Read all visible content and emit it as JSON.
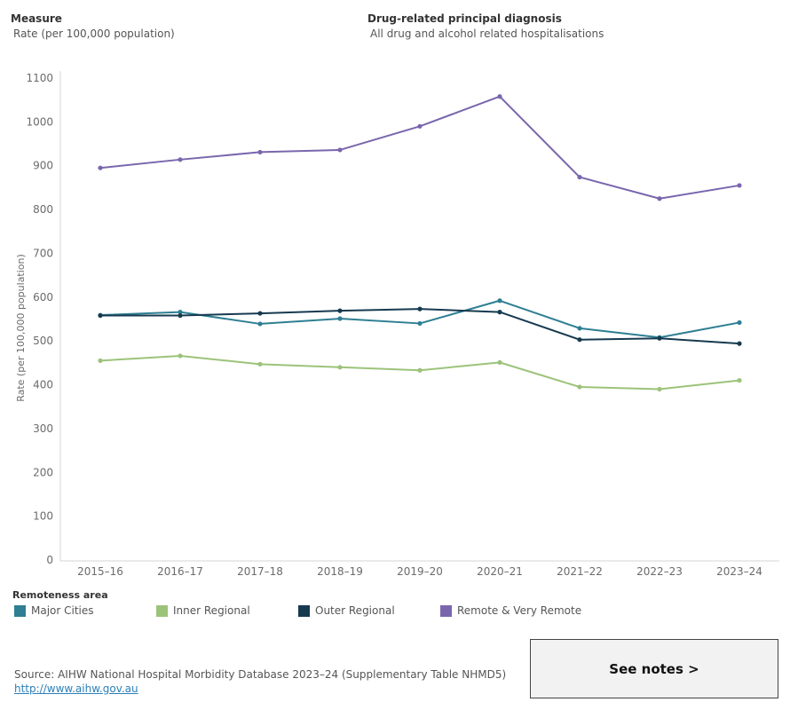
{
  "filters": {
    "measure": {
      "title": "Measure",
      "value": "Rate (per 100,000 population)"
    },
    "diagnosis": {
      "title": "Drug-related principal diagnosis",
      "value": "All drug and alcohol related hospitalisations"
    }
  },
  "chart_data": {
    "type": "line",
    "title": "",
    "xlabel": "",
    "ylabel": "Rate (per 100,000 population)",
    "ylim": [
      0,
      1100
    ],
    "yticks": [
      0,
      100,
      200,
      300,
      400,
      500,
      600,
      700,
      800,
      900,
      1000,
      1100
    ],
    "categories": [
      "2015–16",
      "2016–17",
      "2017–18",
      "2018–19",
      "2019–20",
      "2020–21",
      "2021–22",
      "2022–23",
      "2023–24"
    ],
    "grid": false,
    "legend_position": "bottom",
    "series": [
      {
        "name": "Major Cities",
        "color": "#2e7f93",
        "values": [
          559,
          566,
          539,
          551,
          540,
          592,
          529,
          508,
          542
        ]
      },
      {
        "name": "Inner Regional",
        "color": "#9cc37a",
        "values": [
          455,
          466,
          447,
          440,
          433,
          451,
          395,
          390,
          410
        ]
      },
      {
        "name": "Outer Regional",
        "color": "#173a4f",
        "values": [
          558,
          558,
          563,
          569,
          573,
          566,
          503,
          506,
          494
        ]
      },
      {
        "name": "Remote & Very Remote",
        "color": "#7a66ad",
        "values": [
          895,
          914,
          931,
          936,
          990,
          1058,
          874,
          825,
          855
        ]
      }
    ]
  },
  "legend": {
    "title": "Remoteness area"
  },
  "footer": {
    "source": "Source: AIHW National Hospital Morbidity Database 2023–24 (Supplementary Table NHMD5)",
    "link": "http://www.aihw.gov.au",
    "notes_button": "See notes >"
  }
}
